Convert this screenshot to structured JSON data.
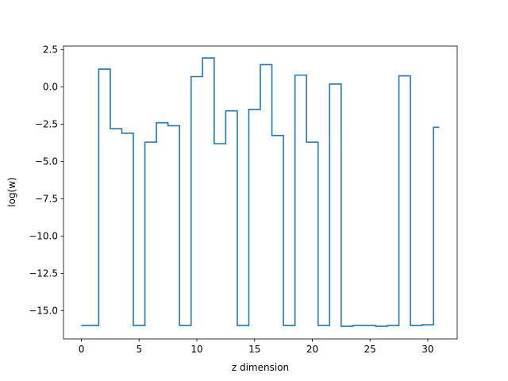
{
  "chart_data": {
    "type": "line",
    "drawstyle": "steps-mid",
    "title": "",
    "xlabel": "z dimension",
    "ylabel": "log(w)",
    "xlim": [
      -1.55,
      32.55
    ],
    "ylim": [
      -16.9,
      2.75
    ],
    "xticks": [
      0,
      5,
      10,
      15,
      20,
      25,
      30
    ],
    "yticks": [
      2.5,
      0.0,
      -2.5,
      -5.0,
      -7.5,
      -10.0,
      -12.5,
      -15.0
    ],
    "ytick_labels": [
      "2.5",
      "0.0",
      "−2.5",
      "−5.0",
      "−7.5",
      "−10.0",
      "−12.5",
      "−15.0"
    ],
    "grid": false,
    "line_color": "#1f77b4",
    "series": [
      {
        "x": [
          0,
          1,
          2,
          3,
          4,
          5,
          6,
          7,
          8,
          9,
          10,
          11,
          12,
          13,
          14,
          15,
          16,
          17,
          18,
          19,
          20,
          21,
          22,
          23,
          24,
          25,
          26,
          27,
          28,
          29,
          30,
          31
        ],
        "values": [
          -16.0,
          -16.0,
          1.2,
          -2.8,
          -3.1,
          -16.0,
          -3.7,
          -2.4,
          -2.6,
          -16.0,
          0.7,
          1.95,
          -3.8,
          -1.6,
          -16.0,
          -1.5,
          1.5,
          -3.25,
          -16.0,
          0.8,
          -3.7,
          -16.0,
          0.2,
          -16.05,
          -16.0,
          -16.0,
          -16.05,
          -16.0,
          0.75,
          -16.0,
          -15.95,
          -2.7
        ]
      }
    ]
  }
}
